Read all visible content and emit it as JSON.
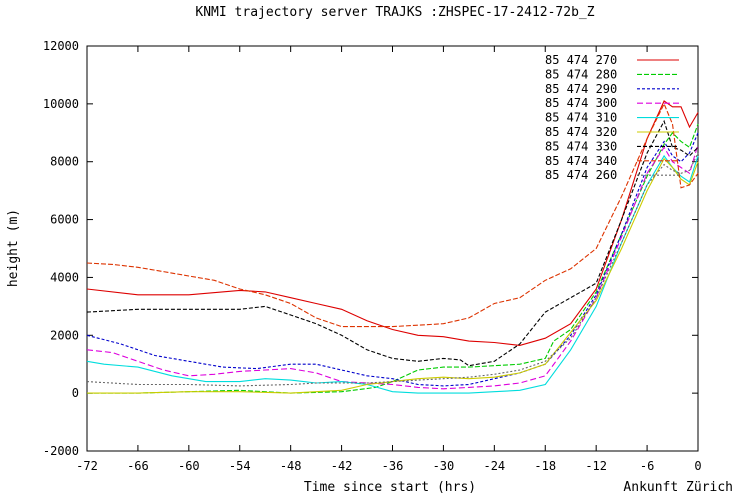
{
  "chart_data": {
    "type": "line",
    "title": "KNMI trajectory server TRAJKS :ZHSPEC-17-2412-72b_Z",
    "xlabel": "Time since start (hrs)",
    "ylabel": "height (m)",
    "corner_label": "Ankunft Zürich",
    "xlim": [
      -72,
      0
    ],
    "ylim": [
      -2000,
      12000
    ],
    "xticks": [
      -72,
      -66,
      -60,
      -54,
      -48,
      -42,
      -36,
      -30,
      -24,
      -18,
      -12,
      -6,
      0
    ],
    "yticks": [
      -2000,
      0,
      2000,
      4000,
      6000,
      8000,
      10000,
      12000
    ],
    "grid": false,
    "legend_position": "top-right",
    "series": [
      {
        "name": "85 474 270",
        "color": "#dd0000",
        "dash": "",
        "x": [
          -72,
          -66,
          -60,
          -54,
          -51,
          -48,
          -45,
          -42,
          -39,
          -36,
          -33,
          -30,
          -27,
          -24,
          -21,
          -18,
          -15,
          -12,
          -9,
          -6,
          -4,
          -3,
          -2,
          -1,
          0
        ],
        "y": [
          3600,
          3400,
          3400,
          3550,
          3500,
          3300,
          3100,
          2900,
          2500,
          2200,
          2000,
          1950,
          1800,
          1750,
          1650,
          1900,
          2400,
          3600,
          6000,
          8800,
          10100,
          9900,
          9900,
          9200,
          9700
        ]
      },
      {
        "name": "85 474 280",
        "color": "#00cc00",
        "dash": "5,2",
        "x": [
          -72,
          -66,
          -60,
          -54,
          -48,
          -42,
          -38,
          -36,
          -33,
          -30,
          -27,
          -24,
          -21,
          -18,
          -17,
          -15,
          -12,
          -9,
          -6,
          -4,
          -3,
          -2,
          -1,
          0
        ],
        "y": [
          0,
          0,
          50,
          100,
          0,
          50,
          200,
          400,
          800,
          900,
          900,
          950,
          1000,
          1200,
          1800,
          2200,
          3500,
          5500,
          7500,
          8600,
          9000,
          8700,
          8500,
          9300
        ]
      },
      {
        "name": "85 474 290",
        "color": "#0000cc",
        "dash": "3,2",
        "x": [
          -72,
          -68,
          -64,
          -60,
          -56,
          -52,
          -48,
          -45,
          -42,
          -39,
          -36,
          -33,
          -30,
          -27,
          -24,
          -21,
          -18,
          -15,
          -12,
          -9,
          -6,
          -4,
          -3,
          -2,
          -1,
          0
        ],
        "y": [
          2000,
          1700,
          1300,
          1100,
          900,
          850,
          1000,
          1000,
          800,
          600,
          500,
          300,
          250,
          300,
          500,
          700,
          1000,
          2000,
          3400,
          5500,
          7800,
          8700,
          8200,
          8000,
          8300,
          9000
        ]
      },
      {
        "name": "85 474 300",
        "color": "#dd00dd",
        "dash": "6,3",
        "x": [
          -72,
          -69,
          -66,
          -63,
          -60,
          -57,
          -54,
          -51,
          -48,
          -45,
          -42,
          -39,
          -36,
          -33,
          -30,
          -27,
          -24,
          -21,
          -18,
          -15,
          -12,
          -9,
          -6,
          -4,
          -3,
          -2,
          -1,
          0
        ],
        "y": [
          1500,
          1400,
          1100,
          800,
          600,
          650,
          750,
          800,
          850,
          700,
          400,
          350,
          300,
          200,
          150,
          200,
          250,
          350,
          600,
          1800,
          3300,
          5400,
          7600,
          8500,
          8000,
          7800,
          7600,
          8600
        ]
      },
      {
        "name": "85 474 310",
        "color": "#00dddd",
        "dash": "",
        "x": [
          -72,
          -70,
          -66,
          -62,
          -58,
          -54,
          -51,
          -48,
          -45,
          -42,
          -39,
          -36,
          -33,
          -30,
          -27,
          -24,
          -21,
          -18,
          -15,
          -12,
          -9,
          -6,
          -4,
          -3,
          -2,
          -1,
          0
        ],
        "y": [
          1100,
          1000,
          900,
          600,
          400,
          400,
          500,
          450,
          350,
          400,
          300,
          50,
          0,
          0,
          0,
          50,
          100,
          300,
          1500,
          3000,
          5200,
          7200,
          8200,
          7800,
          7500,
          7300,
          8200
        ]
      },
      {
        "name": "85 474 320",
        "color": "#cccc00",
        "dash": "",
        "x": [
          -72,
          -66,
          -60,
          -54,
          -48,
          -42,
          -39,
          -36,
          -33,
          -30,
          -27,
          -24,
          -21,
          -18,
          -15,
          -12,
          -9,
          -6,
          -4,
          -3,
          -2,
          -1,
          0
        ],
        "y": [
          0,
          0,
          50,
          50,
          0,
          100,
          300,
          400,
          500,
          550,
          500,
          550,
          700,
          1000,
          2100,
          3200,
          5000,
          7000,
          8100,
          7800,
          7400,
          7200,
          8000
        ]
      },
      {
        "name": "85 474 330",
        "color": "#000000",
        "dash": "4,2",
        "x": [
          -72,
          -69,
          -66,
          -60,
          -54,
          -51,
          -48,
          -45,
          -42,
          -39,
          -36,
          -33,
          -30,
          -28,
          -27,
          -24,
          -21,
          -18,
          -15,
          -12,
          -9,
          -6,
          -4,
          -3,
          -2,
          -1,
          0
        ],
        "y": [
          2800,
          2850,
          2900,
          2900,
          2900,
          3000,
          2700,
          2400,
          2000,
          1500,
          1200,
          1100,
          1200,
          1150,
          950,
          1100,
          1700,
          2800,
          3300,
          3800,
          6000,
          8300,
          9400,
          8500,
          8400,
          8200,
          8500
        ]
      },
      {
        "name": "85 474 340",
        "color": "#dd3300",
        "dash": "5,2",
        "x": [
          -72,
          -69,
          -66,
          -63,
          -60,
          -57,
          -54,
          -51,
          -48,
          -45,
          -42,
          -39,
          -36,
          -33,
          -30,
          -27,
          -24,
          -21,
          -18,
          -15,
          -12,
          -9,
          -6,
          -4,
          -3,
          -2,
          -1,
          0
        ],
        "y": [
          4500,
          4450,
          4350,
          4200,
          4050,
          3900,
          3600,
          3400,
          3100,
          2600,
          2300,
          2300,
          2300,
          2350,
          2400,
          2600,
          3100,
          3300,
          3900,
          4300,
          5000,
          6800,
          8800,
          10000,
          9300,
          7100,
          7200,
          7600
        ]
      },
      {
        "name": "85 474 260",
        "color": "#666666",
        "dash": "2,2",
        "x": [
          -72,
          -66,
          -60,
          -54,
          -48,
          -45,
          -42,
          -39,
          -36,
          -33,
          -30,
          -27,
          -24,
          -21,
          -18,
          -15,
          -12,
          -9,
          -6,
          -4,
          -3,
          -2,
          -1,
          0
        ],
        "y": [
          400,
          300,
          300,
          250,
          300,
          350,
          350,
          350,
          400,
          450,
          500,
          550,
          650,
          800,
          1100,
          1900,
          3300,
          5200,
          7200,
          7900,
          7700,
          7600,
          7700,
          8300
        ]
      }
    ]
  }
}
